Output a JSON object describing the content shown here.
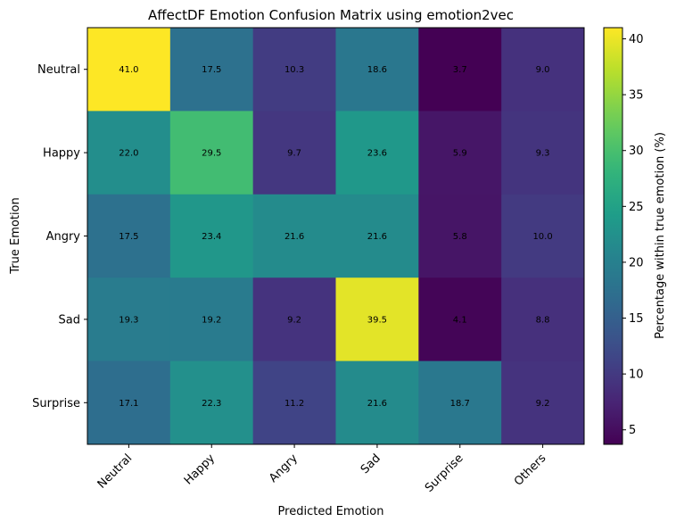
{
  "chart_data": {
    "type": "heatmap",
    "title": "AffectDF Emotion Confusion Matrix using emotion2vec",
    "xlabel": "Predicted Emotion",
    "ylabel": "True Emotion",
    "x_categories": [
      "Neutral",
      "Happy",
      "Angry",
      "Sad",
      "Surprise",
      "Others"
    ],
    "y_categories": [
      "Neutral",
      "Happy",
      "Angry",
      "Sad",
      "Surprise"
    ],
    "values": [
      [
        41.0,
        17.5,
        10.3,
        18.6,
        3.7,
        9.0
      ],
      [
        22.0,
        29.5,
        9.7,
        23.6,
        5.9,
        9.3
      ],
      [
        17.5,
        23.4,
        21.6,
        21.6,
        5.8,
        10.0
      ],
      [
        19.3,
        19.2,
        9.2,
        39.5,
        4.1,
        8.8
      ],
      [
        17.1,
        22.3,
        11.2,
        21.6,
        18.7,
        9.2
      ]
    ],
    "colormap": "viridis",
    "value_range": [
      3.7,
      41.0
    ],
    "colorbar": {
      "label": "Percentage within true emotion (%)",
      "ticks": [
        5,
        10,
        15,
        20,
        25,
        30,
        35,
        40
      ]
    },
    "grid": false
  }
}
